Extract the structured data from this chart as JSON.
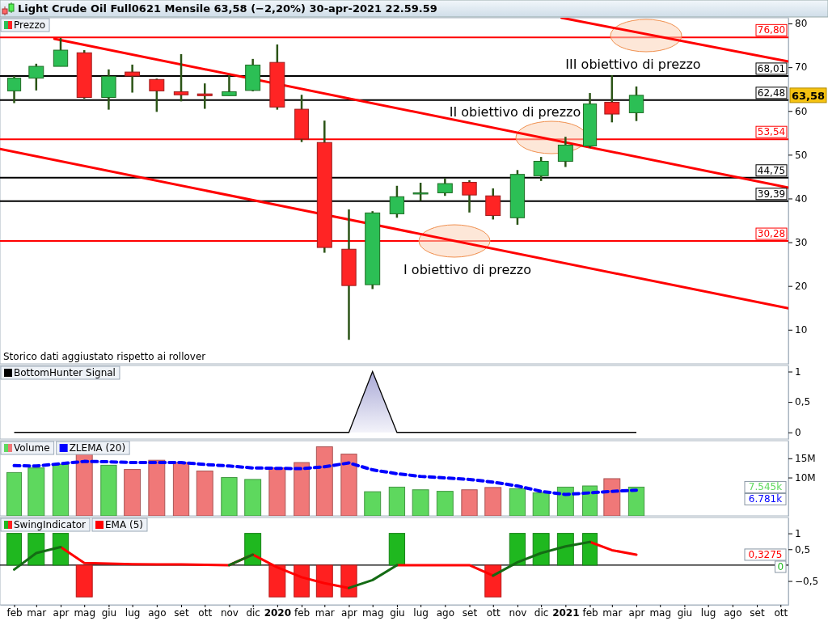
{
  "chart_data": [
    {
      "type": "candlestick",
      "title": "Light Crude Oil Full0621 Mensile 63,58 (−2,20%) 30-apr-2021 22.59.59",
      "legend": "top left",
      "tick_labels": "y",
      "xlim": [
        "2019-01-14",
        "2021-10-11"
      ],
      "ylim": [
        2.2,
        81.3
      ],
      "yticks": [
        10,
        20,
        30,
        40,
        50,
        60,
        70,
        80
      ],
      "series": [
        {
          "name": "Prezzo",
          "type": "candlestick",
          "x": [
            "2019-02",
            "2019-03",
            "2019-04",
            "2019-05",
            "2019-06",
            "2019-07",
            "2019-08",
            "2019-09",
            "2019-10",
            "2019-11",
            "2019-12",
            "2020-01",
            "2020-02",
            "2020-03",
            "2020-04",
            "2020-05",
            "2020-06",
            "2020-07",
            "2020-08",
            "2020-09",
            "2020-10",
            "2020-11",
            "2020-12",
            "2021-01",
            "2021-02",
            "2021-03",
            "2021-04"
          ],
          "ohlc": [
            [
              64.6,
              68.0,
              61.8,
              67.5
            ],
            [
              67.5,
              70.8,
              64.7,
              70.2
            ],
            [
              70.2,
              76.7,
              70.2,
              73.9
            ],
            [
              73.3,
              73.9,
              62.8,
              63.1
            ],
            [
              63.1,
              69.5,
              60.3,
              67.9
            ],
            [
              68.9,
              70.6,
              64.2,
              68.0
            ],
            [
              67.2,
              67.4,
              59.8,
              64.6
            ],
            [
              64.4,
              73.0,
              62.2,
              63.7
            ],
            [
              63.9,
              66.3,
              60.5,
              63.5
            ],
            [
              63.5,
              68.2,
              63.5,
              64.4
            ],
            [
              64.7,
              71.9,
              64.5,
              70.5
            ],
            [
              71.1,
              75.2,
              60.3,
              60.9
            ],
            [
              60.4,
              63.7,
              52.9,
              53.6
            ],
            [
              52.8,
              57.8,
              27.6,
              28.8
            ],
            [
              28.4,
              37.5,
              7.7,
              20.1
            ],
            [
              20.3,
              37.1,
              19.3,
              36.7
            ],
            [
              36.5,
              42.9,
              35.6,
              40.4
            ],
            [
              41.3,
              43.6,
              39.5,
              41.3
            ],
            [
              41.3,
              44.6,
              40.6,
              43.4
            ],
            [
              43.7,
              44.2,
              36.8,
              40.8
            ],
            [
              40.6,
              42.3,
              35.2,
              36.1
            ],
            [
              35.6,
              46.5,
              34.0,
              45.5
            ],
            [
              45.2,
              49.5,
              44.0,
              48.5
            ],
            [
              48.5,
              54.1,
              47.2,
              52.2
            ],
            [
              52.0,
              64.1,
              51.6,
              61.6
            ],
            [
              62.0,
              68.2,
              57.4,
              59.3
            ],
            [
              59.6,
              65.6,
              57.7,
              63.58
            ]
          ]
        },
        {
          "type": "line",
          "color": "#ff0000",
          "x": [
            "2019-03-24",
            "2021-10-11"
          ],
          "values": [
            76.5,
            42.5
          ]
        },
        {
          "type": "line",
          "color": "#ff0000",
          "x": [
            "2019-01-14",
            "2021-10-11"
          ],
          "values": [
            51.3,
            14.9
          ]
        },
        {
          "type": "line",
          "color": "#ff0000",
          "x": [
            "2020-12-27",
            "2021-10-11"
          ],
          "values": [
            81.3,
            71.3
          ]
        }
      ],
      "ref_lines": [
        {
          "axis": "y",
          "value": 76.8,
          "label": "76,80",
          "color": "#ff0000"
        },
        {
          "axis": "y",
          "value": 68.01,
          "label": "68,01",
          "color": "#000000"
        },
        {
          "axis": "y",
          "value": 62.48,
          "label": "62,48",
          "color": "#000000"
        },
        {
          "axis": "y",
          "value": 53.54,
          "label": "53,54",
          "color": "#ff0000"
        },
        {
          "axis": "y",
          "value": 44.75,
          "label": "44,75",
          "color": "#000000"
        },
        {
          "axis": "y",
          "value": 39.39,
          "label": "39,39",
          "color": "#000000"
        },
        {
          "axis": "y",
          "value": 30.28,
          "label": "30,28",
          "color": "#ff0000"
        }
      ],
      "annotations": [
        "I obiettivo di prezzo",
        "II obiettivo di prezzo",
        "III obiettivo di prezzo",
        "63,58",
        "Storico dati aggiustato rispetto ai rollover"
      ]
    },
    {
      "type": "area",
      "legend": "top left",
      "tick_labels": "y",
      "xlim": [
        "2019-01-14",
        "2021-10-11"
      ],
      "ylim": [
        -0.11,
        1.1
      ],
      "yticks": [
        {
          "value": 0,
          "label": "0"
        },
        {
          "value": 0.5,
          "label": "0,5"
        },
        {
          "value": 1,
          "label": "1"
        }
      ],
      "x": [
        "2019-02",
        "2019-03",
        "2019-04",
        "2019-05",
        "2019-06",
        "2019-07",
        "2019-08",
        "2019-09",
        "2019-10",
        "2019-11",
        "2019-12",
        "2020-01",
        "2020-02",
        "2020-03",
        "2020-04",
        "2020-05",
        "2020-06",
        "2020-07",
        "2020-08",
        "2020-09",
        "2020-10",
        "2020-11",
        "2020-12",
        "2021-01",
        "2021-02",
        "2021-03",
        "2021-04"
      ],
      "series": [
        {
          "name": "BottomHunter Signal",
          "color": "#000000",
          "values": [
            0,
            0,
            0,
            0,
            0,
            0,
            0,
            0,
            0,
            0,
            0,
            0,
            0,
            0,
            0,
            1,
            0,
            0,
            0,
            0,
            0,
            0,
            0,
            0,
            0,
            0,
            0
          ]
        }
      ]
    },
    {
      "type": "bar",
      "legend": "top left",
      "tick_labels": "y",
      "xlim": [
        "2019-01-14",
        "2021-10-11"
      ],
      "ylim": [
        0,
        19.6
      ],
      "yticks": [
        {
          "value": 10,
          "label": "10M"
        },
        {
          "value": 15,
          "label": "15M"
        }
      ],
      "x": [
        "2019-02",
        "2019-03",
        "2019-04",
        "2019-05",
        "2019-06",
        "2019-07",
        "2019-08",
        "2019-09",
        "2019-10",
        "2019-11",
        "2019-12",
        "2020-01",
        "2020-02",
        "2020-03",
        "2020-04",
        "2020-05",
        "2020-06",
        "2020-07",
        "2020-08",
        "2020-09",
        "2020-10",
        "2020-11",
        "2020-12",
        "2021-01",
        "2021-02",
        "2021-03",
        "2021-04"
      ],
      "series": [
        {
          "name": "Volume",
          "type": "bar",
          "color": "#5ed85e",
          "colors": [
            "#5ed85e",
            "#5ed85e",
            "#5ed85e",
            "#f07878",
            "#5ed85e",
            "#f07878",
            "#f07878",
            "#f07878",
            "#f07878",
            "#5ed85e",
            "#5ed85e",
            "#f07878",
            "#f07878",
            "#f07878",
            "#f07878",
            "#5ed85e",
            "#5ed85e",
            "#5ed85e",
            "#5ed85e",
            "#f07878",
            "#f07878",
            "#5ed85e",
            "#5ed85e",
            "#5ed85e",
            "#5ed85e",
            "#f07878",
            "#5ed85e"
          ],
          "values": [
            11.3,
            12.5,
            13.4,
            16.1,
            13.2,
            12.1,
            14.5,
            13.9,
            11.7,
            10.0,
            9.5,
            12.5,
            13.9,
            18.0,
            16.1,
            6.3,
            7.5,
            6.8,
            6.4,
            6.8,
            7.4,
            7.1,
            6.0,
            7.5,
            7.8,
            9.7,
            7.5
          ]
        },
        {
          "name": "ZLEMA (20)",
          "type": "line",
          "color": "#0000ff",
          "line_style": "dashed",
          "values": [
            13.1,
            13.0,
            13.6,
            14.2,
            14.1,
            13.9,
            13.9,
            13.9,
            13.4,
            13.0,
            12.5,
            12.4,
            12.3,
            12.8,
            13.8,
            12.0,
            11.0,
            10.3,
            9.9,
            9.5,
            8.8,
            7.8,
            6.4,
            5.6,
            6.0,
            6.4,
            6.7
          ]
        }
      ],
      "annotations": [
        "7.545k",
        "6.781k"
      ]
    },
    {
      "type": "bar",
      "legend": "top left",
      "xlim": [
        "2019-01-14",
        "2021-10-11"
      ],
      "xticks": [
        {
          "value": "2019-02",
          "label": "feb"
        },
        {
          "value": "2019-03",
          "label": "mar"
        },
        {
          "value": "2019-04",
          "label": "apr"
        },
        {
          "value": "2019-05",
          "label": "mag"
        },
        {
          "value": "2019-06",
          "label": "giu"
        },
        {
          "value": "2019-07",
          "label": "lug"
        },
        {
          "value": "2019-08",
          "label": "ago"
        },
        {
          "value": "2019-09",
          "label": "set"
        },
        {
          "value": "2019-10",
          "label": "ott"
        },
        {
          "value": "2019-11",
          "label": "nov"
        },
        {
          "value": "2019-12",
          "label": "dic"
        },
        {
          "value": "2020-01",
          "label": "2020"
        },
        {
          "value": "2020-02",
          "label": "feb"
        },
        {
          "value": "2020-03",
          "label": "mar"
        },
        {
          "value": "2020-04",
          "label": "apr"
        },
        {
          "value": "2020-05",
          "label": "mag"
        },
        {
          "value": "2020-06",
          "label": "giu"
        },
        {
          "value": "2020-07",
          "label": "lug"
        },
        {
          "value": "2020-08",
          "label": "ago"
        },
        {
          "value": "2020-09",
          "label": "set"
        },
        {
          "value": "2020-10",
          "label": "ott"
        },
        {
          "value": "2020-11",
          "label": "nov"
        },
        {
          "value": "2020-12",
          "label": "dic"
        },
        {
          "value": "2021-01",
          "label": "2021"
        },
        {
          "value": "2021-02",
          "label": "feb"
        },
        {
          "value": "2021-03",
          "label": "mar"
        },
        {
          "value": "2021-04",
          "label": "apr"
        },
        {
          "value": "2021-05",
          "label": "mag"
        },
        {
          "value": "2021-06",
          "label": "giu"
        },
        {
          "value": "2021-07",
          "label": "lug"
        },
        {
          "value": "2021-08",
          "label": "ago"
        },
        {
          "value": "2021-09",
          "label": "set"
        },
        {
          "value": "2021-10",
          "label": "ott"
        }
      ],
      "ylim": [
        -1.25,
        1.5
      ],
      "yticks": [
        {
          "value": -0.5,
          "label": "−0,5"
        },
        {
          "value": 0.5,
          "label": "0,5"
        },
        {
          "value": 1,
          "label": "1"
        }
      ],
      "ref_lines": [
        {
          "axis": "y",
          "value": 0,
          "color": "#000000"
        }
      ],
      "x": [
        "2019-02",
        "2019-03",
        "2019-04",
        "2019-05",
        "2019-06",
        "2019-07",
        "2019-08",
        "2019-09",
        "2019-10",
        "2019-11",
        "2019-12",
        "2020-01",
        "2020-02",
        "2020-03",
        "2020-04",
        "2020-05",
        "2020-06",
        "2020-07",
        "2020-08",
        "2020-09",
        "2020-10",
        "2020-11",
        "2020-12",
        "2021-01",
        "2021-02",
        "2021-03",
        "2021-04"
      ],
      "series": [
        {
          "name": "SwingIndicator",
          "type": "bar",
          "color": "#1fb81f",
          "colors": [
            "#1fb81f",
            "#1fb81f",
            "#1fb81f",
            "#ff2020",
            "#1fb81f",
            "#1fb81f",
            "#1fb81f",
            "#1fb81f",
            "#1fb81f",
            "#1fb81f",
            "#1fb81f",
            "#ff2020",
            "#ff2020",
            "#ff2020",
            "#ff2020",
            "#1fb81f",
            "#1fb81f",
            "#1fb81f",
            "#1fb81f",
            "#1fb81f",
            "#ff2020",
            "#1fb81f",
            "#1fb81f",
            "#1fb81f",
            "#1fb81f",
            "#1fb81f",
            "#1fb81f"
          ],
          "values": [
            1,
            1,
            1,
            -1,
            0,
            0,
            0,
            0,
            0,
            0,
            1,
            -1,
            -1,
            -1,
            -1,
            0,
            1,
            0,
            0,
            0,
            -1,
            1,
            1,
            1,
            1,
            0,
            0
          ]
        },
        {
          "name": "EMA (5)",
          "type": "line",
          "color": "#ff0000",
          "values": [
            null,
            null,
            0.57,
            0.07,
            0.05,
            0.03,
            0.02,
            0.02,
            0.01,
            0.0,
            0.33,
            -0.07,
            -0.38,
            -0.57,
            -0.72,
            null,
            0.0,
            0.0,
            0.0,
            0.0,
            -0.33,
            null,
            null,
            null,
            0.73,
            0.47,
            0.33
          ]
        },
        {
          "type": "line",
          "color": "#146b14",
          "values": [
            -0.14,
            0.38,
            0.57,
            null,
            null,
            null,
            null,
            null,
            null,
            0.0,
            0.33,
            null,
            null,
            null,
            -0.72,
            -0.47,
            0.0,
            null,
            null,
            null,
            -0.33,
            0.09,
            0.38,
            0.59,
            0.73,
            null,
            null
          ]
        }
      ],
      "annotations": [
        "0",
        "0,3275"
      ]
    }
  ]
}
